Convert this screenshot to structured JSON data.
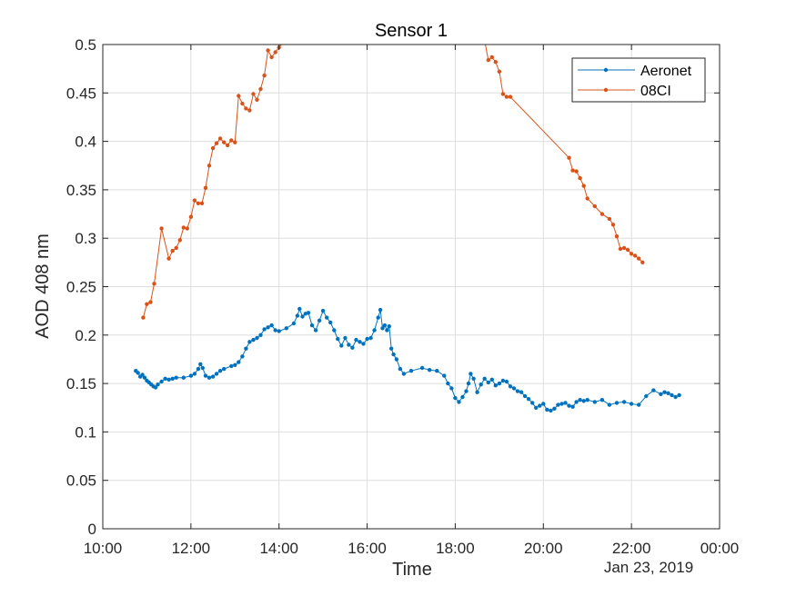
{
  "chart_data": {
    "type": "line",
    "title": "Sensor 1",
    "xlabel": "Time",
    "ylabel": "AOD 408 nm",
    "x_date_label": "Jan 23, 2019",
    "xlim": [
      "10:00",
      "00:00"
    ],
    "ylim": [
      0,
      0.5
    ],
    "x_ticks": [
      "10:00",
      "12:00",
      "14:00",
      "16:00",
      "18:00",
      "20:00",
      "22:00",
      "00:00"
    ],
    "y_ticks": [
      "0",
      "0.05",
      "0.1",
      "0.15",
      "0.2",
      "0.25",
      "0.3",
      "0.35",
      "0.4",
      "0.45",
      "0.5"
    ],
    "grid": true,
    "legend_position": "top-right",
    "series": [
      {
        "name": "Aeronet",
        "color": "#0072BD",
        "x": [
          "10:45",
          "10:48",
          "10:51",
          "10:54",
          "10:57",
          "11:00",
          "11:03",
          "11:06",
          "11:09",
          "11:12",
          "11:15",
          "11:20",
          "11:25",
          "11:30",
          "11:35",
          "11:40",
          "11:50",
          "12:00",
          "12:05",
          "12:10",
          "12:13",
          "12:16",
          "12:20",
          "12:25",
          "12:30",
          "12:35",
          "12:40",
          "12:45",
          "12:55",
          "13:00",
          "13:05",
          "13:10",
          "13:15",
          "13:20",
          "13:25",
          "13:30",
          "13:35",
          "13:40",
          "13:45",
          "13:50",
          "13:55",
          "14:00",
          "14:10",
          "14:20",
          "14:25",
          "14:28",
          "14:32",
          "14:36",
          "14:40",
          "14:45",
          "14:50",
          "14:55",
          "15:00",
          "15:05",
          "15:10",
          "15:15",
          "15:20",
          "15:25",
          "15:30",
          "15:35",
          "15:40",
          "15:45",
          "15:50",
          "15:55",
          "16:00",
          "16:05",
          "16:10",
          "16:15",
          "16:18",
          "16:21",
          "16:24",
          "16:27",
          "16:30",
          "16:33",
          "16:36",
          "16:40",
          "16:45",
          "16:50",
          "17:00",
          "17:15",
          "17:25",
          "17:35",
          "17:45",
          "17:50",
          "17:55",
          "18:00",
          "18:05",
          "18:10",
          "18:15",
          "18:18",
          "18:21",
          "18:25",
          "18:30",
          "18:35",
          "18:40",
          "18:45",
          "18:50",
          "18:55",
          "19:00",
          "19:05",
          "19:10",
          "19:15",
          "19:20",
          "19:25",
          "19:30",
          "19:35",
          "19:40",
          "19:45",
          "19:50",
          "19:55",
          "20:00",
          "20:05",
          "20:10",
          "20:15",
          "20:20",
          "20:25",
          "20:30",
          "20:35",
          "20:40",
          "20:45",
          "20:50",
          "20:55",
          "21:00",
          "21:10",
          "21:20",
          "21:30",
          "21:40",
          "21:50",
          "22:00",
          "22:10",
          "22:20",
          "22:30",
          "22:40",
          "22:45",
          "22:50",
          "22:55",
          "23:00",
          "23:05"
        ],
        "values": [
          0.163,
          0.161,
          0.157,
          0.159,
          0.156,
          0.153,
          0.151,
          0.149,
          0.147,
          0.146,
          0.149,
          0.152,
          0.155,
          0.154,
          0.155,
          0.156,
          0.156,
          0.158,
          0.16,
          0.165,
          0.17,
          0.166,
          0.158,
          0.156,
          0.157,
          0.16,
          0.163,
          0.165,
          0.168,
          0.169,
          0.172,
          0.178,
          0.186,
          0.193,
          0.195,
          0.197,
          0.2,
          0.206,
          0.208,
          0.21,
          0.205,
          0.204,
          0.207,
          0.212,
          0.22,
          0.227,
          0.219,
          0.222,
          0.223,
          0.21,
          0.205,
          0.215,
          0.225,
          0.218,
          0.213,
          0.205,
          0.196,
          0.189,
          0.197,
          0.19,
          0.187,
          0.195,
          0.193,
          0.191,
          0.196,
          0.197,
          0.205,
          0.218,
          0.226,
          0.207,
          0.21,
          0.205,
          0.209,
          0.186,
          0.18,
          0.175,
          0.165,
          0.16,
          0.163,
          0.166,
          0.164,
          0.163,
          0.158,
          0.15,
          0.145,
          0.135,
          0.131,
          0.136,
          0.142,
          0.15,
          0.16,
          0.155,
          0.141,
          0.149,
          0.155,
          0.151,
          0.154,
          0.148,
          0.15,
          0.153,
          0.152,
          0.147,
          0.145,
          0.142,
          0.141,
          0.137,
          0.134,
          0.13,
          0.125,
          0.127,
          0.129,
          0.123,
          0.122,
          0.124,
          0.128,
          0.129,
          0.13,
          0.127,
          0.126,
          0.131,
          0.133,
          0.132,
          0.133,
          0.131,
          0.133,
          0.128,
          0.13,
          0.131,
          0.129,
          0.128,
          0.137,
          0.143,
          0.139,
          0.141,
          0.14,
          0.138,
          0.136,
          0.138
        ]
      },
      {
        "name": "08CI",
        "color": "#D95319",
        "x": [
          "10:55",
          "11:00",
          "11:05",
          "11:10",
          "11:20",
          "11:30",
          "11:35",
          "11:40",
          "11:45",
          "11:50",
          "11:55",
          "12:00",
          "12:05",
          "12:10",
          "12:15",
          "12:20",
          "12:25",
          "12:30",
          "12:35",
          "12:40",
          "12:45",
          "12:50",
          "12:55",
          "13:00",
          "13:05",
          "13:10",
          "13:15",
          "13:20",
          "13:25",
          "13:30",
          "13:35",
          "13:40",
          "13:45",
          "13:50",
          "13:55",
          "14:00",
          "14:05",
          "14:10",
          "14:15",
          "18:40",
          "18:45",
          "18:50",
          "18:55",
          "19:00",
          "19:05",
          "19:10",
          "19:15",
          "20:35",
          "20:40",
          "20:45",
          "20:50",
          "20:55",
          "21:00",
          "21:10",
          "21:20",
          "21:30",
          "21:35",
          "21:40",
          "21:45",
          "21:50",
          "21:55",
          "22:00",
          "22:05",
          "22:10",
          "22:15"
        ],
        "values": [
          0.218,
          0.232,
          0.234,
          0.253,
          0.31,
          0.279,
          0.287,
          0.29,
          0.298,
          0.311,
          0.31,
          0.322,
          0.339,
          0.336,
          0.336,
          0.352,
          0.375,
          0.393,
          0.398,
          0.403,
          0.399,
          0.396,
          0.401,
          0.399,
          0.447,
          0.439,
          0.434,
          0.432,
          0.449,
          0.443,
          0.454,
          0.468,
          0.494,
          0.487,
          0.492,
          0.497,
          0.502,
          0.505,
          0.506,
          0.504,
          0.484,
          0.487,
          0.482,
          0.472,
          0.449,
          0.446,
          0.446,
          0.383,
          0.37,
          0.369,
          0.362,
          0.354,
          0.341,
          0.333,
          0.325,
          0.32,
          0.314,
          0.302,
          0.289,
          0.29,
          0.288,
          0.284,
          0.282,
          0.279,
          0.275
        ]
      }
    ]
  }
}
